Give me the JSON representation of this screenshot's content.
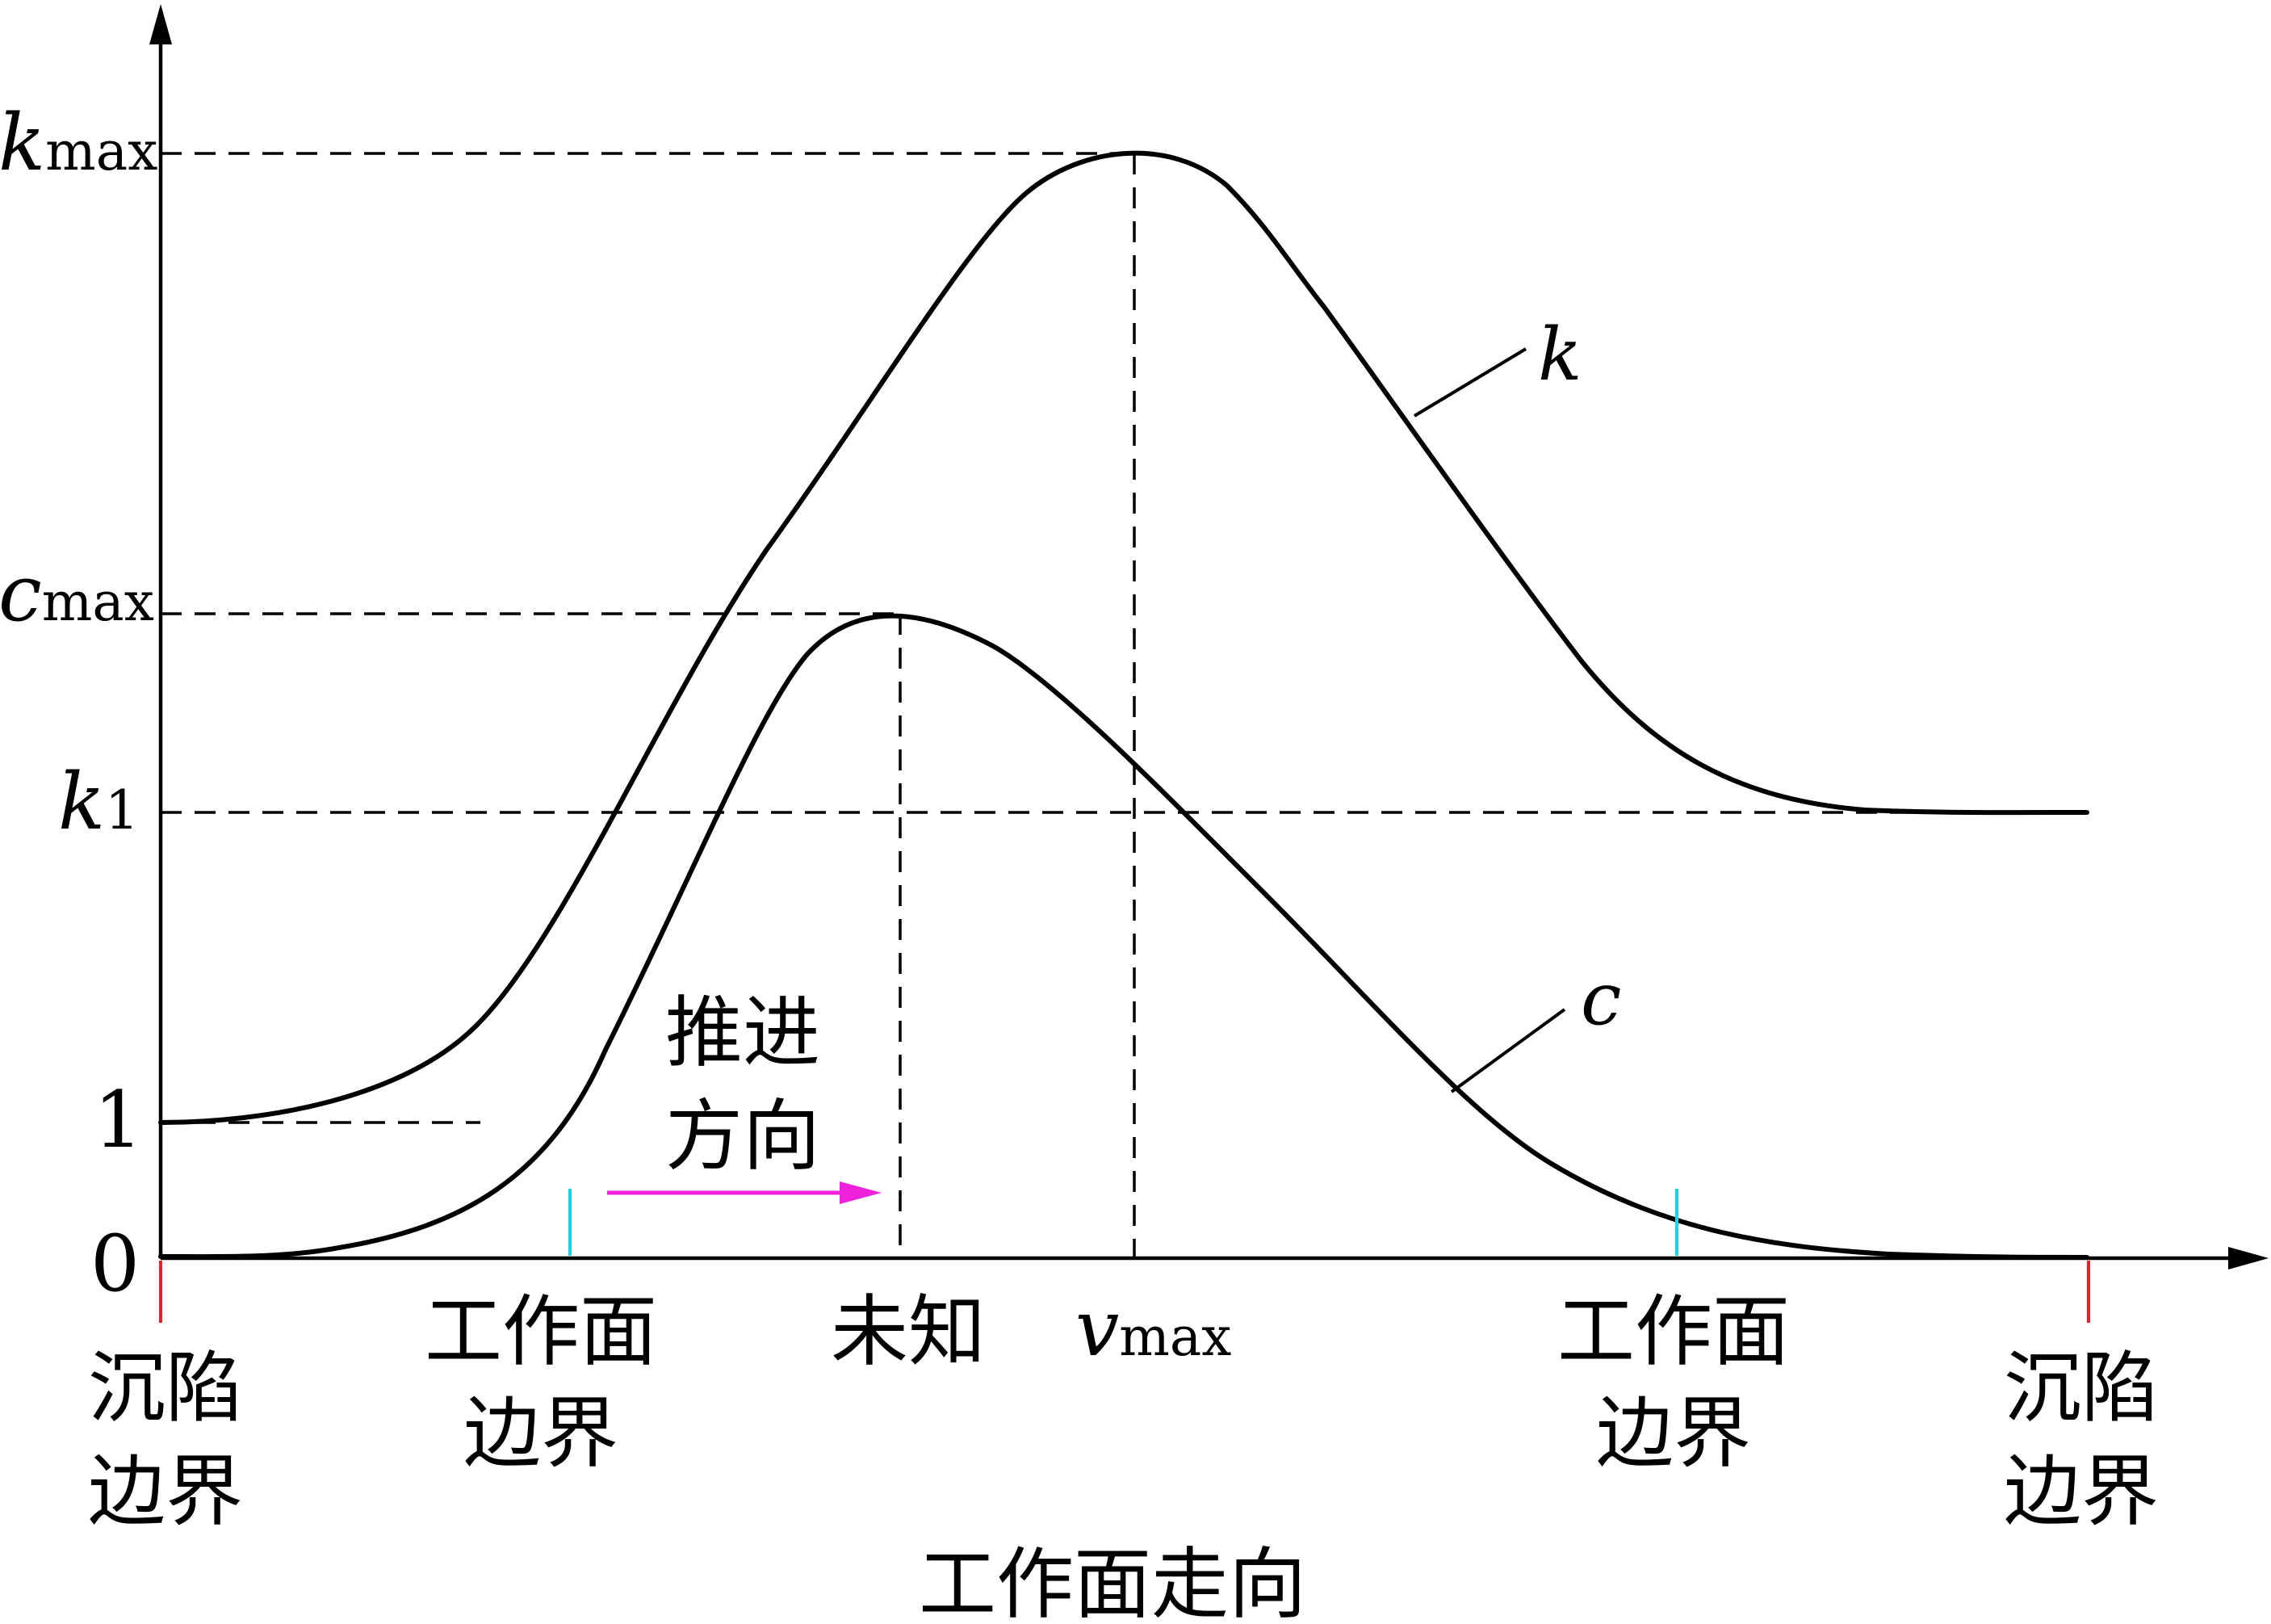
{
  "y_axis_labels": {
    "kmax": {
      "base": "k",
      "sub": "max"
    },
    "cmax": {
      "base": "c",
      "sub": "max"
    },
    "k1": {
      "base": "k",
      "sub": "1"
    },
    "one": "1",
    "zero": "0"
  },
  "curve_labels": {
    "k": "k",
    "c": "c"
  },
  "x_labels": {
    "subsidence_left": [
      "沉陷",
      "边界"
    ],
    "face_left": [
      "工作面",
      "边界"
    ],
    "unknown": "未知",
    "vmax": {
      "base": "v",
      "sub": "max"
    },
    "face_right": [
      "工作面",
      "边界"
    ],
    "subsidence_right": [
      "沉陷",
      "边界"
    ]
  },
  "advance_direction": [
    "推进",
    "方向"
  ],
  "x_axis_title": "工作面走向",
  "colors": {
    "curve": "#000000",
    "subsidence_marker": "#e8202a",
    "face_marker": "#19d3e6",
    "arrow": "#ee22dd"
  }
}
